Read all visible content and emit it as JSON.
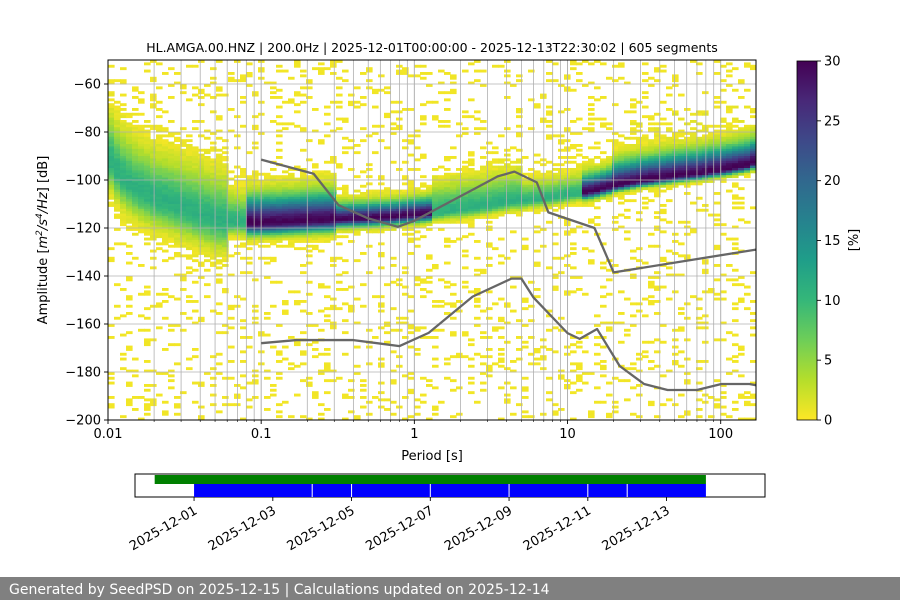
{
  "footer": {
    "text": "Generated by SeedPSD on 2025-12-15 | Calculations updated on 2025-12-14"
  },
  "chart_data": {
    "type": "heatmap",
    "title": "HL.AMGA.00.HNZ | 200.0Hz | 2025-12-01T00:00:00 - 2025-12-13T22:30:02 | 605 segments",
    "xlabel": "Period [s]",
    "ylabel_parts": [
      "Amplitude [",
      "m",
      "2",
      "/s",
      "4",
      "/Hz",
      "] [dB]"
    ],
    "x_scale": "log",
    "xlim": [
      0.01,
      170
    ],
    "ylim": [
      -200,
      -50
    ],
    "x_ticks": [
      0.01,
      0.1,
      1,
      10,
      100
    ],
    "x_tick_labels": [
      "0.01",
      "0.1",
      "1",
      "10",
      "100"
    ],
    "y_ticks": [
      -200,
      -180,
      -160,
      -140,
      -120,
      -100,
      -80,
      -60
    ],
    "y_tick_labels": [
      "−200",
      "−180",
      "−160",
      "−140",
      "−120",
      "−100",
      "−80",
      "−60"
    ],
    "grid": true,
    "colorbar": {
      "label": "[%]",
      "range": [
        0,
        30
      ],
      "ticks": [
        0,
        5,
        10,
        15,
        20,
        25,
        30
      ],
      "tick_labels": [
        "0",
        "5",
        "10",
        "15",
        "20",
        "25",
        "30"
      ],
      "colormap": "viridis_r",
      "stops": [
        "#fde725",
        "#b5de2b",
        "#6ece58",
        "#35b779",
        "#1f9e89",
        "#26828e",
        "#31688e",
        "#3e4989",
        "#482878",
        "#440154"
      ]
    },
    "psd_mode": {
      "x": [
        0.01,
        0.012,
        0.015,
        0.02,
        0.025,
        0.03,
        0.04,
        0.05,
        0.06,
        0.08,
        0.1,
        0.15,
        0.2,
        0.3,
        0.5,
        0.7,
        1,
        1.5,
        2,
        3,
        4,
        5,
        7,
        10,
        15,
        20,
        30,
        50,
        70,
        100,
        150,
        170
      ],
      "y": [
        -90,
        -98,
        -103,
        -107,
        -109,
        -111,
        -114,
        -116,
        -117,
        -117.5,
        -117.5,
        -117,
        -116.5,
        -116,
        -115.5,
        -115,
        -114,
        -113,
        -112,
        -110.5,
        -109,
        -108.5,
        -107.5,
        -106,
        -104,
        -102,
        -100,
        -98,
        -97,
        -95.5,
        -93.5,
        -92
      ]
    },
    "noise_models": [
      {
        "x": [
          0.1,
          0.22,
          0.32,
          0.5,
          0.78,
          1.0,
          1.5,
          2.5,
          3.5,
          4.5,
          6.3,
          7.5,
          15,
          20,
          170
        ],
        "y": [
          -91.5,
          -97.4,
          -110.5,
          -116,
          -119.5,
          -117,
          -111,
          -103.5,
          -98.5,
          -96.5,
          -101,
          -113.5,
          -120,
          -138.5,
          -129
        ]
      },
      {
        "x": [
          0.1,
          0.17,
          0.4,
          0.8,
          1.24,
          2.4,
          4.3,
          5.0,
          6.0,
          10,
          12,
          15.6,
          21.9,
          31.6,
          45,
          70,
          101,
          154,
          170
        ],
        "y": [
          -168,
          -166.7,
          -166.7,
          -169.2,
          -163.7,
          -148.6,
          -141.1,
          -141.1,
          -149,
          -163.8,
          -166.2,
          -162.1,
          -177.5,
          -185,
          -187.5,
          -187.5,
          -185,
          -185,
          -185.5
        ]
      }
    ],
    "timeline": {
      "date_range": [
        "2025-11-29T12:00",
        "2025-12-15T12:00"
      ],
      "data_span": [
        "2025-11-30T00:00",
        "2025-12-13T23:59"
      ],
      "segment_span": [
        "2025-12-01T00:00",
        "2025-12-13T23:59"
      ],
      "segment_breaks": [
        "2025-12-04T00:00",
        "2025-12-05T00:00",
        "2025-12-07T00:00",
        "2025-12-09T00:00",
        "2025-12-11T00:00",
        "2025-12-12T00:00"
      ],
      "tick_labels": [
        "2025-12-01",
        "2025-12-03",
        "2025-12-05",
        "2025-12-07",
        "2025-12-09",
        "2025-12-11",
        "2025-12-13"
      ],
      "colors": {
        "data": "#008000",
        "segments": "#0000ff"
      }
    }
  }
}
